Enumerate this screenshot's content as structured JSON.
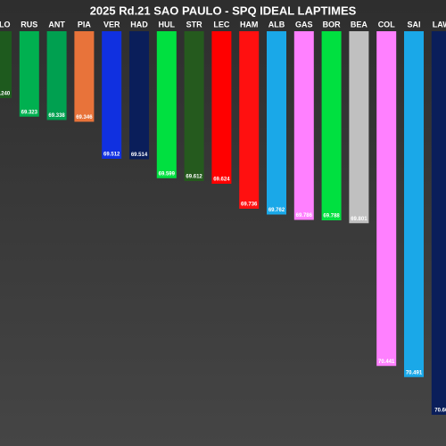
{
  "chart_data": {
    "type": "bar",
    "title": "2025 Rd.21 SAO PAULO - SPQ IDEAL LAPTIMES",
    "categories": [
      "ALO",
      "RUS",
      "ANT",
      "PIA",
      "VER",
      "HAD",
      "HUL",
      "STR",
      "LEC",
      "HAM",
      "ALB",
      "GAS",
      "BOR",
      "BEA",
      "COL",
      "SAI",
      "LAW"
    ],
    "values": [
      69.24,
      69.323,
      69.338,
      69.346,
      69.512,
      69.514,
      69.599,
      69.612,
      69.624,
      69.736,
      69.762,
      69.786,
      69.788,
      69.801,
      70.441,
      70.491,
      70.66
    ],
    "value_labels": [
      "69.240",
      "69.323",
      "69.338",
      "69.346",
      "69.512",
      "69.514",
      "69.599",
      "69.612",
      "69.624",
      "69.736",
      "69.762",
      "69.786",
      "69.788",
      "69.801",
      "70.441",
      "70.491",
      "70.66"
    ],
    "colors": [
      "#1e5a1e",
      "#00b050",
      "#00a050",
      "#e8733a",
      "#1030e0",
      "#0a1e5a",
      "#00e040",
      "#255a1e",
      "#ff0000",
      "#ff1010",
      "#1aa8e8",
      "#ff80ff",
      "#00e040",
      "#c0c0c0",
      "#ff80ff",
      "#1aa8e8",
      "#0a1e5a"
    ],
    "ylim": [
      68.94,
      70.8
    ]
  }
}
